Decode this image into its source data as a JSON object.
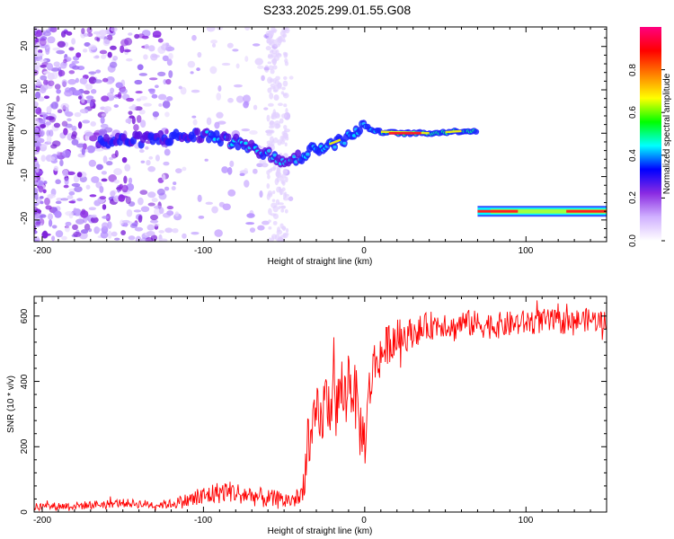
{
  "title": "S233.2025.299.01.55.G08",
  "chart_data": [
    {
      "type": "heatmap",
      "xlabel": "Height of straight line (km)",
      "ylabel": "Frequency (Hz)",
      "xlim": [
        -205,
        150
      ],
      "ylim": [
        -25,
        24.5
      ],
      "xticks": [
        -200,
        -100,
        0,
        100
      ],
      "xtick_labels": [
        "-200",
        "-100",
        "0",
        "100"
      ],
      "yticks": [
        -20,
        -10,
        0,
        10,
        20
      ],
      "ytick_labels": [
        "-20",
        "-10",
        "0",
        "10",
        "20"
      ],
      "colorbar": {
        "label": "Normalized spectral amplitude",
        "range": [
          0,
          1
        ],
        "ticks": [
          0,
          0.2,
          0.4,
          0.6,
          0.8
        ],
        "tick_labels": [
          "0.0",
          "0.2",
          "0.4",
          "0.6",
          "0.8"
        ],
        "colors": [
          "#ffffff",
          "#d0b0ff",
          "#8a2be2",
          "#0000ff",
          "#00ffff",
          "#00ff00",
          "#ffff00",
          "#ff8000",
          "#ff0000",
          "#ff0080"
        ]
      },
      "ridge": [
        {
          "x": -165,
          "f": -2
        },
        {
          "x": -140,
          "f": -1.5
        },
        {
          "x": -120,
          "f": -1
        },
        {
          "x": -100,
          "f": -0.5
        },
        {
          "x": -85,
          "f": -1.5
        },
        {
          "x": -70,
          "f": -3
        },
        {
          "x": -60,
          "f": -5
        },
        {
          "x": -50,
          "f": -6
        },
        {
          "x": -40,
          "f": -5.5
        },
        {
          "x": -35,
          "f": -4
        },
        {
          "x": -25,
          "f": -3
        },
        {
          "x": -15,
          "f": -1.5
        },
        {
          "x": -5,
          "f": 0
        },
        {
          "x": 0,
          "f": 2
        },
        {
          "x": 5,
          "f": 0.5
        },
        {
          "x": 20,
          "f": 0
        },
        {
          "x": 40,
          "f": 0
        },
        {
          "x": 60,
          "f": 0.5
        },
        {
          "x": 70,
          "f": 0.5
        }
      ],
      "carrier_line": {
        "x_start": 70,
        "x_end": 150,
        "f": -18
      }
    },
    {
      "type": "line",
      "xlabel": "Height of straight line (km)",
      "ylabel": "SNR (10 * v/v)",
      "xlim": [
        -205,
        150
      ],
      "ylim": [
        0,
        660
      ],
      "xticks": [
        -200,
        -100,
        0,
        100
      ],
      "xtick_labels": [
        "-200",
        "-100",
        "0",
        "100"
      ],
      "yticks": [
        0,
        200,
        400,
        600
      ],
      "ytick_labels": [
        "0",
        "200",
        "400",
        "600"
      ],
      "color": "#ff0000",
      "series": [
        {
          "name": "SNR",
          "x": [
            -205,
            -190,
            -175,
            -160,
            -150,
            -140,
            -130,
            -120,
            -110,
            -100,
            -95,
            -90,
            -85,
            -80,
            -75,
            -70,
            -65,
            -60,
            -55,
            -50,
            -45,
            -40,
            -37,
            -35,
            -33,
            -30,
            -27,
            -25,
            -22,
            -20,
            -17,
            -15,
            -12,
            -10,
            -7,
            -5,
            -3,
            0,
            3,
            5,
            8,
            10,
            13,
            15,
            18,
            20,
            25,
            30,
            35,
            40,
            45,
            50,
            55,
            60,
            70,
            80,
            90,
            100,
            110,
            120,
            130,
            140,
            150
          ],
          "y": [
            15,
            18,
            20,
            25,
            28,
            25,
            22,
            25,
            35,
            45,
            55,
            60,
            65,
            60,
            55,
            50,
            45,
            40,
            38,
            35,
            38,
            40,
            120,
            260,
            200,
            300,
            260,
            350,
            320,
            380,
            300,
            400,
            340,
            420,
            380,
            330,
            260,
            220,
            370,
            440,
            470,
            480,
            500,
            520,
            530,
            535,
            540,
            550,
            560,
            570,
            575,
            580,
            560,
            580,
            575,
            570,
            575,
            580,
            585,
            580,
            585,
            590,
            580
          ]
        }
      ],
      "noise_amplitude": [
        {
          "x": -205,
          "amp": 12
        },
        {
          "x": -120,
          "amp": 14
        },
        {
          "x": -100,
          "amp": 35
        },
        {
          "x": -60,
          "amp": 30
        },
        {
          "x": -40,
          "amp": 25
        },
        {
          "x": -35,
          "amp": 90
        },
        {
          "x": -10,
          "amp": 110
        },
        {
          "x": 10,
          "amp": 70
        },
        {
          "x": 30,
          "amp": 45
        },
        {
          "x": 150,
          "amp": 35
        }
      ]
    }
  ]
}
